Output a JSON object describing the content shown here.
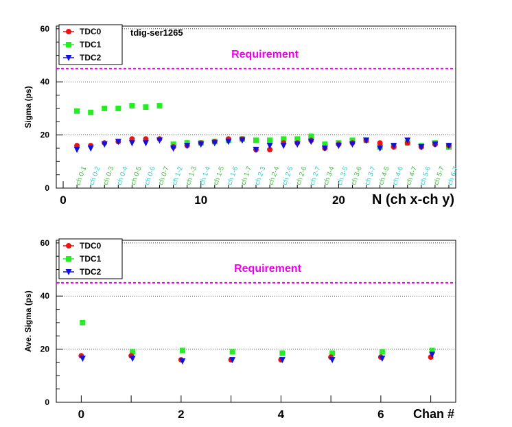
{
  "chart_data": [
    {
      "type": "scatter",
      "title": "tdig-ser1265",
      "ylabel": "Sigma (ps)",
      "xlabel": "N (ch x-ch y)",
      "xlim": [
        -0.5,
        28.5
      ],
      "ylim": [
        0,
        61
      ],
      "xticks": [
        "0",
        "10",
        "20"
      ],
      "yticks": [
        "0",
        "20",
        "40",
        "60"
      ],
      "grid": "horizontal dotted",
      "legend_position": "top-left",
      "annotation": "Requirement",
      "requirement_y": 45,
      "categories": [
        "ch 0-1",
        "ch 0-2",
        "ch 0-3",
        "ch 0-4",
        "ch 0-5",
        "ch 0-6",
        "ch 0-7",
        "ch 1-2",
        "ch 1-3",
        "ch 1-4",
        "ch 1-5",
        "ch 1-6",
        "ch 1-7",
        "ch 2-3",
        "ch 2-4",
        "ch 2-5",
        "ch 2-6",
        "ch 2-7",
        "ch 3-4",
        "ch 3-5",
        "ch 3-6",
        "ch 3-7",
        "ch 4-5",
        "ch 4-6",
        "ch 4-7",
        "ch 5-6",
        "ch 5-7",
        "ch 6-7"
      ],
      "series": [
        {
          "name": "TDC0",
          "color": "#ee1111",
          "marker": "circle",
          "x": [
            1,
            2,
            3,
            4,
            5,
            6,
            7,
            8,
            9,
            10,
            11,
            12,
            13,
            14,
            15,
            16,
            17,
            18,
            19,
            20,
            21,
            22,
            23,
            24,
            25,
            26,
            27,
            28
          ],
          "y": [
            16,
            16,
            17,
            17.5,
            18.5,
            18.5,
            18.5,
            15.5,
            16,
            17,
            17.5,
            18.5,
            18.5,
            14.5,
            14.5,
            17,
            17,
            18,
            15,
            16.5,
            17,
            18,
            17,
            15.5,
            17,
            15.5,
            16.5,
            16
          ]
        },
        {
          "name": "TDC1",
          "color": "#22ee22",
          "marker": "square",
          "x": [
            1,
            2,
            3,
            4,
            5,
            6,
            7,
            8,
            9,
            10,
            11,
            12,
            13,
            14,
            15,
            16,
            17,
            18,
            19,
            20,
            21,
            22,
            23,
            24,
            25,
            26,
            27,
            28
          ],
          "y": [
            29,
            28.5,
            30,
            30,
            31,
            30.5,
            31,
            16.5,
            17,
            17,
            17.5,
            18,
            18.5,
            18,
            18,
            18.5,
            18.5,
            19.5,
            16.5,
            17,
            18,
            18,
            15.5,
            16,
            17,
            16,
            17,
            15.5
          ]
        },
        {
          "name": "TDC2",
          "color": "#1111dd",
          "marker": "triangle-down",
          "x": [
            1,
            2,
            3,
            4,
            5,
            6,
            7,
            8,
            9,
            10,
            11,
            12,
            13,
            14,
            15,
            16,
            17,
            18,
            19,
            20,
            21,
            22,
            23,
            24,
            25,
            26,
            27,
            28
          ],
          "y": [
            14.5,
            15,
            16.5,
            17.5,
            17,
            17,
            18,
            15,
            16,
            16.5,
            17,
            17.5,
            18,
            14.5,
            16,
            16,
            16.5,
            17.5,
            15,
            16,
            16.5,
            18,
            15,
            16,
            18,
            15.5,
            16.5,
            16
          ]
        }
      ]
    },
    {
      "type": "scatter",
      "ylabel": "Ave. Sigma (ps)",
      "xlabel": "Chan #",
      "xlim": [
        -0.5,
        7.5
      ],
      "ylim": [
        0,
        61
      ],
      "xticks": [
        "0",
        "2",
        "4",
        "6"
      ],
      "yticks": [
        "0",
        "20",
        "40",
        "60"
      ],
      "grid": "horizontal dotted",
      "legend_position": "top-left",
      "annotation": "Requirement",
      "requirement_y": 45,
      "series": [
        {
          "name": "TDC0",
          "color": "#ee1111",
          "marker": "circle",
          "x": [
            0,
            1,
            2,
            3,
            4,
            5,
            6,
            7
          ],
          "y": [
            17.5,
            17.5,
            16,
            16,
            16,
            17,
            17,
            17
          ]
        },
        {
          "name": "TDC1",
          "color": "#22ee22",
          "marker": "square",
          "x": [
            0,
            1,
            2,
            3,
            4,
            5,
            6,
            7
          ],
          "y": [
            30,
            19,
            19.5,
            19,
            18.5,
            18.5,
            19,
            19.5
          ]
        },
        {
          "name": "TDC2",
          "color": "#1111dd",
          "marker": "triangle-down",
          "x": [
            0,
            1,
            2,
            3,
            4,
            5,
            6,
            7
          ],
          "y": [
            16.5,
            16.5,
            15.5,
            16,
            16,
            16,
            16.5,
            18
          ]
        }
      ]
    }
  ]
}
